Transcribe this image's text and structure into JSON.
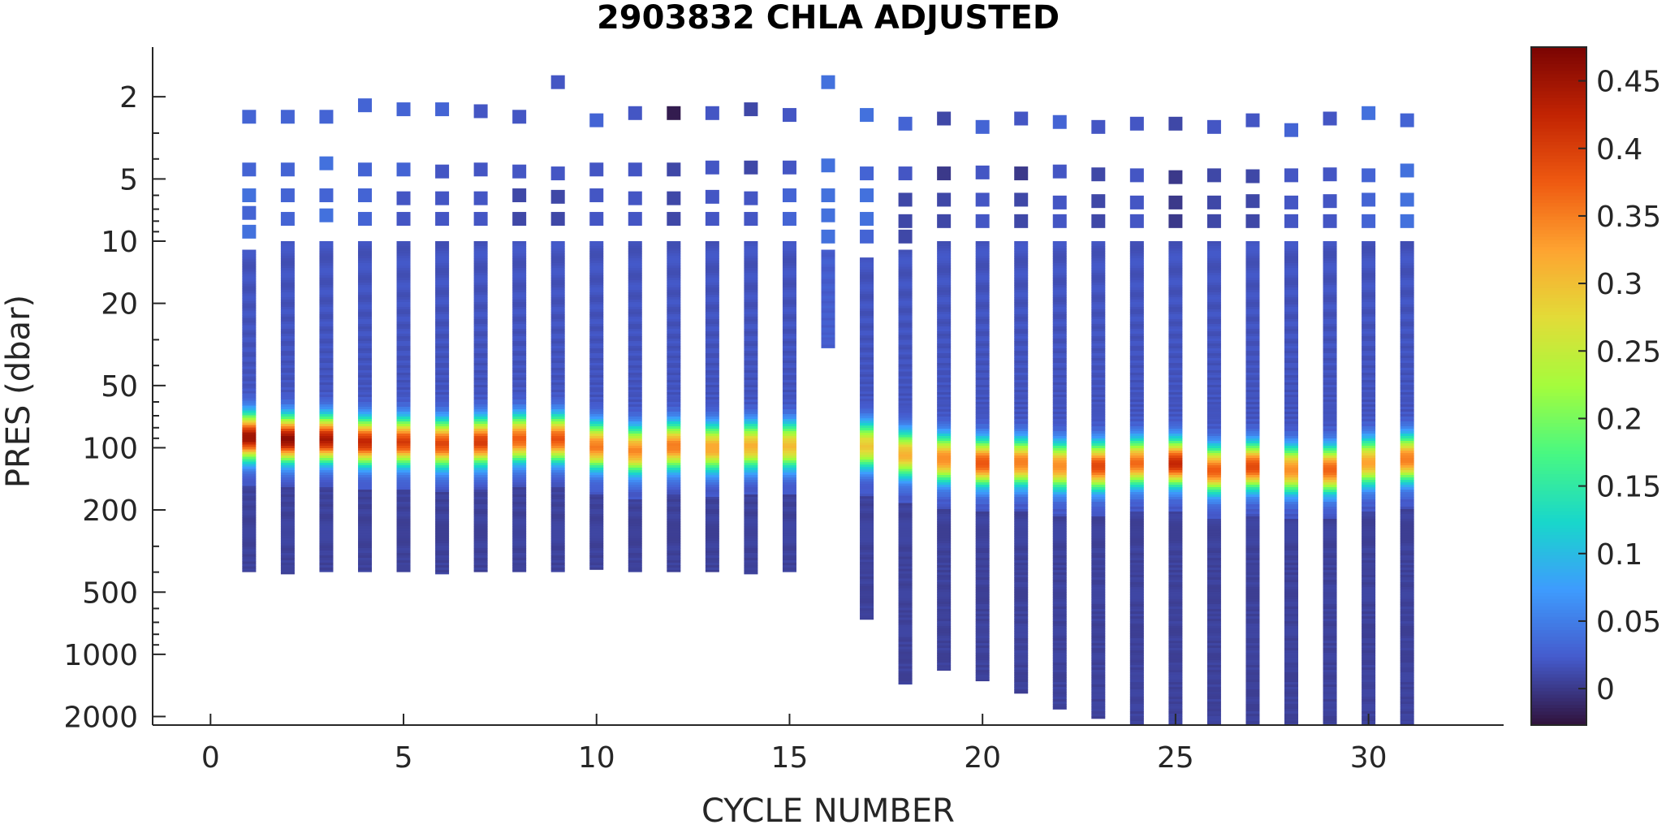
{
  "chart_data": {
    "type": "heatmap",
    "title": "2903832  CHLA ADJUSTED",
    "xlabel": "CYCLE NUMBER",
    "ylabel": "PRES (dbar)",
    "y_scale": "log",
    "y_reversed": true,
    "xlim": [
      -1.5,
      33.5
    ],
    "ylim": [
      1.15,
      2200
    ],
    "x_ticks": [
      0,
      5,
      10,
      15,
      20,
      25,
      30
    ],
    "y_ticks": [
      2,
      5,
      10,
      20,
      50,
      100,
      200,
      500,
      1000,
      2000
    ],
    "colorbar": {
      "min": -0.027,
      "max": 0.475,
      "ticks": [
        0,
        0.05,
        0.1,
        0.15,
        0.2,
        0.25,
        0.3,
        0.35,
        0.4,
        0.45
      ],
      "colormap": "turbo"
    },
    "grid": false,
    "profiles": [
      {
        "cycle": 1,
        "surface_points": [
          [
            2.5,
            0.03
          ],
          [
            4.5,
            0.03
          ],
          [
            6.0,
            0.04
          ],
          [
            7.3,
            0.03
          ],
          [
            9.0,
            0.04
          ]
        ],
        "continuous_top": 11,
        "bottom": 400,
        "peak_depth": 90,
        "peak_value": 0.44
      },
      {
        "cycle": 2,
        "surface_points": [
          [
            2.5,
            0.03
          ],
          [
            4.5,
            0.03
          ],
          [
            6.0,
            0.03
          ],
          [
            7.8,
            0.03
          ]
        ],
        "continuous_top": 10,
        "bottom": 410,
        "peak_depth": 92,
        "peak_value": 0.45
      },
      {
        "cycle": 3,
        "surface_points": [
          [
            2.5,
            0.03
          ],
          [
            4.2,
            0.04
          ],
          [
            6.0,
            0.03
          ],
          [
            7.5,
            0.04
          ]
        ],
        "continuous_top": 10,
        "bottom": 400,
        "peak_depth": 92,
        "peak_value": 0.43
      },
      {
        "cycle": 4,
        "surface_points": [
          [
            2.2,
            0.03
          ],
          [
            4.5,
            0.03
          ],
          [
            6.0,
            0.03
          ],
          [
            7.8,
            0.03
          ]
        ],
        "continuous_top": 10,
        "bottom": 400,
        "peak_depth": 95,
        "peak_value": 0.41
      },
      {
        "cycle": 5,
        "surface_points": [
          [
            2.3,
            0.03
          ],
          [
            4.5,
            0.03
          ],
          [
            6.2,
            0.02
          ],
          [
            7.8,
            0.02
          ]
        ],
        "continuous_top": 10,
        "bottom": 400,
        "peak_depth": 95,
        "peak_value": 0.39
      },
      {
        "cycle": 6,
        "surface_points": [
          [
            2.3,
            0.03
          ],
          [
            4.6,
            0.02
          ],
          [
            6.2,
            0.02
          ],
          [
            7.8,
            0.02
          ]
        ],
        "continuous_top": 10,
        "bottom": 410,
        "peak_depth": 97,
        "peak_value": 0.38
      },
      {
        "cycle": 7,
        "surface_points": [
          [
            2.35,
            0.02
          ],
          [
            4.5,
            0.02
          ],
          [
            6.2,
            0.02
          ],
          [
            7.8,
            0.02
          ]
        ],
        "continuous_top": 10,
        "bottom": 400,
        "peak_depth": 95,
        "peak_value": 0.39
      },
      {
        "cycle": 8,
        "surface_points": [
          [
            2.5,
            0.02
          ],
          [
            4.6,
            0.02
          ],
          [
            6.0,
            0.01
          ],
          [
            7.8,
            0.01
          ]
        ],
        "continuous_top": 10,
        "bottom": 400,
        "peak_depth": 92,
        "peak_value": 0.36
      },
      {
        "cycle": 9,
        "surface_points": [
          [
            1.7,
            0.02
          ],
          [
            4.7,
            0.02
          ],
          [
            6.1,
            0.01
          ],
          [
            7.8,
            0.01
          ]
        ],
        "continuous_top": 10,
        "bottom": 400,
        "peak_depth": 92,
        "peak_value": 0.37
      },
      {
        "cycle": 10,
        "surface_points": [
          [
            2.6,
            0.03
          ],
          [
            4.5,
            0.02
          ],
          [
            6.0,
            0.02
          ],
          [
            7.8,
            0.02
          ]
        ],
        "continuous_top": 10,
        "bottom": 390,
        "peak_depth": 100,
        "peak_value": 0.34
      },
      {
        "cycle": 11,
        "surface_points": [
          [
            2.4,
            0.02
          ],
          [
            4.5,
            0.02
          ],
          [
            6.2,
            0.02
          ],
          [
            7.8,
            0.02
          ]
        ],
        "continuous_top": 10,
        "bottom": 400,
        "peak_depth": 105,
        "peak_value": 0.33
      },
      {
        "cycle": 12,
        "surface_points": [
          [
            2.4,
            -0.02
          ],
          [
            4.5,
            0.01
          ],
          [
            6.2,
            0.01
          ],
          [
            7.8,
            0.01
          ]
        ],
        "continuous_top": 10,
        "bottom": 400,
        "peak_depth": 100,
        "peak_value": 0.34
      },
      {
        "cycle": 13,
        "surface_points": [
          [
            2.4,
            0.02
          ],
          [
            4.4,
            0.02
          ],
          [
            6.1,
            0.02
          ],
          [
            7.8,
            0.02
          ]
        ],
        "continuous_top": 10,
        "bottom": 400,
        "peak_depth": 102,
        "peak_value": 0.31
      },
      {
        "cycle": 14,
        "surface_points": [
          [
            2.3,
            0.01
          ],
          [
            4.4,
            0.01
          ],
          [
            6.2,
            0.02
          ],
          [
            7.8,
            0.02
          ]
        ],
        "continuous_top": 10,
        "bottom": 410,
        "peak_depth": 100,
        "peak_value": 0.3
      },
      {
        "cycle": 15,
        "surface_points": [
          [
            2.45,
            0.02
          ],
          [
            4.4,
            0.02
          ],
          [
            6.0,
            0.03
          ],
          [
            7.8,
            0.03
          ]
        ],
        "continuous_top": 10,
        "bottom": 400,
        "peak_depth": 100,
        "peak_value": 0.29
      },
      {
        "cycle": 16,
        "surface_points": [
          [
            1.7,
            0.04
          ],
          [
            4.3,
            0.04
          ],
          [
            6.0,
            0.04
          ],
          [
            7.5,
            0.04
          ],
          [
            9.5,
            0.04
          ]
        ],
        "continuous_top": 11,
        "bottom": 33,
        "peak_depth": null,
        "peak_value": null
      },
      {
        "cycle": 17,
        "surface_points": [
          [
            2.45,
            0.04
          ],
          [
            4.7,
            0.03
          ],
          [
            6.0,
            0.04
          ],
          [
            7.8,
            0.04
          ],
          [
            9.5,
            0.03
          ]
        ],
        "continuous_top": 12,
        "bottom": 680,
        "peak_depth": 100,
        "peak_value": 0.28
      },
      {
        "cycle": 18,
        "surface_points": [
          [
            2.7,
            0.03
          ],
          [
            4.7,
            0.02
          ],
          [
            6.3,
            0.01
          ],
          [
            8.0,
            0.01
          ],
          [
            9.5,
            0.01
          ]
        ],
        "continuous_top": 11,
        "bottom": 1400,
        "peak_depth": 110,
        "peak_value": 0.3
      },
      {
        "cycle": 19,
        "surface_points": [
          [
            2.55,
            0.01
          ],
          [
            4.7,
            0.0
          ],
          [
            6.3,
            0.01
          ],
          [
            8.0,
            0.01
          ]
        ],
        "continuous_top": 10,
        "bottom": 1200,
        "peak_depth": 115,
        "peak_value": 0.33
      },
      {
        "cycle": 20,
        "surface_points": [
          [
            2.8,
            0.03
          ],
          [
            4.65,
            0.02
          ],
          [
            6.3,
            0.02
          ],
          [
            8.0,
            0.02
          ]
        ],
        "continuous_top": 10,
        "bottom": 1350,
        "peak_depth": 120,
        "peak_value": 0.37
      },
      {
        "cycle": 21,
        "surface_points": [
          [
            2.55,
            0.02
          ],
          [
            4.7,
            0.0
          ],
          [
            6.3,
            0.01
          ],
          [
            8.0,
            0.01
          ]
        ],
        "continuous_top": 10,
        "bottom": 1550,
        "peak_depth": 120,
        "peak_value": 0.34
      },
      {
        "cycle": 22,
        "surface_points": [
          [
            2.65,
            0.03
          ],
          [
            4.6,
            0.02
          ],
          [
            6.5,
            0.02
          ],
          [
            8.0,
            0.02
          ]
        ],
        "continuous_top": 10,
        "bottom": 1850,
        "peak_depth": 125,
        "peak_value": 0.33
      },
      {
        "cycle": 23,
        "surface_points": [
          [
            2.8,
            0.02
          ],
          [
            4.75,
            0.01
          ],
          [
            6.4,
            0.01
          ],
          [
            8.0,
            0.01
          ]
        ],
        "continuous_top": 10,
        "bottom": 2050,
        "peak_depth": 125,
        "peak_value": 0.38
      },
      {
        "cycle": 24,
        "surface_points": [
          [
            2.7,
            0.02
          ],
          [
            4.8,
            0.02
          ],
          [
            6.5,
            0.02
          ],
          [
            8.0,
            0.02
          ]
        ],
        "continuous_top": 10,
        "bottom": 2200,
        "peak_depth": 120,
        "peak_value": 0.35
      },
      {
        "cycle": 25,
        "surface_points": [
          [
            2.7,
            0.01
          ],
          [
            4.9,
            0.0
          ],
          [
            6.5,
            0.0
          ],
          [
            8.0,
            0.0
          ]
        ],
        "continuous_top": 10,
        "bottom": 2200,
        "peak_depth": 120,
        "peak_value": 0.41
      },
      {
        "cycle": 26,
        "surface_points": [
          [
            2.8,
            0.02
          ],
          [
            4.8,
            0.01
          ],
          [
            6.5,
            0.01
          ],
          [
            8.0,
            0.01
          ]
        ],
        "continuous_top": 10,
        "bottom": 2200,
        "peak_depth": 130,
        "peak_value": 0.36
      },
      {
        "cycle": 27,
        "surface_points": [
          [
            2.6,
            0.02
          ],
          [
            4.85,
            0.01
          ],
          [
            6.4,
            0.01
          ],
          [
            8.0,
            0.01
          ]
        ],
        "continuous_top": 10,
        "bottom": 2200,
        "peak_depth": 125,
        "peak_value": 0.38
      },
      {
        "cycle": 28,
        "surface_points": [
          [
            2.9,
            0.03
          ],
          [
            4.8,
            0.02
          ],
          [
            6.5,
            0.02
          ],
          [
            8.0,
            0.02
          ]
        ],
        "continuous_top": 10,
        "bottom": 2200,
        "peak_depth": 130,
        "peak_value": 0.33
      },
      {
        "cycle": 29,
        "surface_points": [
          [
            2.55,
            0.02
          ],
          [
            4.75,
            0.02
          ],
          [
            6.4,
            0.02
          ],
          [
            8.0,
            0.02
          ]
        ],
        "continuous_top": 10,
        "bottom": 2200,
        "peak_depth": 130,
        "peak_value": 0.36
      },
      {
        "cycle": 30,
        "surface_points": [
          [
            2.4,
            0.04
          ],
          [
            4.8,
            0.03
          ],
          [
            6.3,
            0.03
          ],
          [
            8.0,
            0.03
          ]
        ],
        "continuous_top": 10,
        "bottom": 2200,
        "peak_depth": 120,
        "peak_value": 0.31
      },
      {
        "cycle": 31,
        "surface_points": [
          [
            2.6,
            0.03
          ],
          [
            4.55,
            0.04
          ],
          [
            6.3,
            0.04
          ],
          [
            8.0,
            0.04
          ]
        ],
        "continuous_top": 10,
        "bottom": 2200,
        "peak_depth": 115,
        "peak_value": 0.34
      }
    ]
  }
}
